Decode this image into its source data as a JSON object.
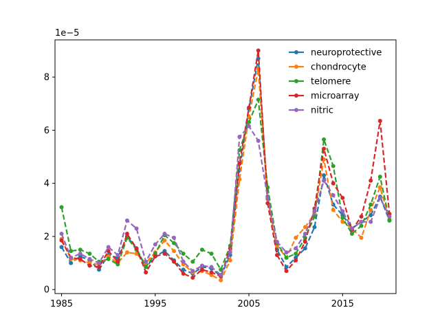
{
  "chart_data": {
    "type": "line",
    "title": "",
    "xlabel": "",
    "ylabel": "",
    "offset_text": "1e−5",
    "y_scale_factor": 1e-05,
    "xlim": [
      1984.3,
      2020.7
    ],
    "ylim": [
      -0.15,
      9.4
    ],
    "xticks": [
      1985,
      1995,
      2005,
      2015
    ],
    "xtick_labels": [
      "1985",
      "1995",
      "2005",
      "2015"
    ],
    "yticks": [
      0,
      2,
      4,
      6,
      8
    ],
    "ytick_labels": [
      "0",
      "2",
      "4",
      "6",
      "8"
    ],
    "grid": false,
    "legend_position": "upper right",
    "x": [
      1985,
      1986,
      1987,
      1988,
      1989,
      1990,
      1991,
      1992,
      1993,
      1994,
      1995,
      1996,
      1997,
      1998,
      1999,
      2000,
      2001,
      2002,
      2003,
      2004,
      2005,
      2006,
      2007,
      2008,
      2009,
      2010,
      2011,
      2012,
      2013,
      2014,
      2015,
      2016,
      2017,
      2018,
      2019,
      2020
    ],
    "series": [
      {
        "name": "neuroprotective",
        "color": "#1f77b4",
        "values": [
          1.6,
          1.0,
          1.25,
          1.1,
          0.75,
          1.3,
          1.2,
          2.0,
          1.55,
          0.85,
          1.25,
          1.45,
          1.1,
          0.75,
          0.6,
          0.85,
          0.8,
          0.5,
          1.3,
          4.5,
          6.8,
          8.7,
          3.5,
          1.5,
          0.85,
          1.2,
          1.55,
          2.35,
          4.3,
          3.2,
          2.8,
          2.3,
          2.55,
          2.8,
          3.5,
          2.6
        ]
      },
      {
        "name": "chondrocyte",
        "color": "#ff7f0e",
        "values": [
          1.9,
          1.15,
          1.1,
          1.0,
          0.95,
          1.25,
          1.0,
          1.4,
          1.35,
          1.0,
          1.4,
          1.85,
          1.45,
          0.95,
          0.65,
          0.7,
          0.55,
          0.35,
          1.1,
          4.15,
          6.5,
          8.3,
          3.4,
          1.65,
          1.2,
          1.95,
          2.35,
          2.85,
          4.9,
          3.0,
          2.55,
          2.3,
          1.95,
          3.0,
          3.85,
          2.65
        ]
      },
      {
        "name": "telomere",
        "color": "#2ca02c",
        "values": [
          3.1,
          1.45,
          1.5,
          1.35,
          1.05,
          1.15,
          0.95,
          1.95,
          1.5,
          0.85,
          1.35,
          2.05,
          1.75,
          1.35,
          1.05,
          1.5,
          1.35,
          0.75,
          1.65,
          5.25,
          6.3,
          7.15,
          3.85,
          1.75,
          1.2,
          1.35,
          1.95,
          2.75,
          5.65,
          4.65,
          2.7,
          2.1,
          2.4,
          3.2,
          4.25,
          2.6
        ]
      },
      {
        "name": "microarray",
        "color": "#d62728",
        "values": [
          1.85,
          1.2,
          1.15,
          0.9,
          0.85,
          1.45,
          1.05,
          2.1,
          1.55,
          0.65,
          1.25,
          1.35,
          1.05,
          0.6,
          0.45,
          0.75,
          0.65,
          0.5,
          1.55,
          4.75,
          6.85,
          9.0,
          3.25,
          1.3,
          0.7,
          1.1,
          1.8,
          3.05,
          5.3,
          4.0,
          3.45,
          2.25,
          2.75,
          4.1,
          6.35,
          2.85
        ]
      },
      {
        "name": "nitric",
        "color": "#9467bd",
        "values": [
          2.1,
          1.2,
          1.35,
          1.15,
          1.0,
          1.6,
          1.3,
          2.6,
          2.3,
          1.05,
          1.7,
          2.1,
          1.95,
          1.05,
          0.7,
          0.9,
          0.85,
          0.55,
          1.4,
          5.75,
          6.15,
          5.6,
          3.45,
          1.8,
          1.4,
          1.55,
          2.1,
          2.95,
          4.1,
          3.55,
          2.95,
          2.3,
          2.55,
          2.55,
          3.45,
          2.75
        ]
      }
    ]
  }
}
